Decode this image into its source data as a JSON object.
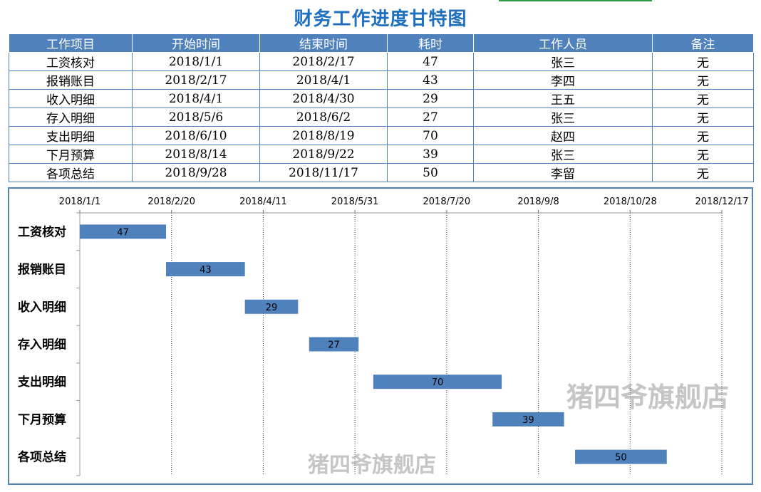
{
  "title": "财务工作进度甘特图",
  "table": {
    "headers": [
      "工作项目",
      "开始时间",
      "结束时间",
      "耗时",
      "工作人员",
      "备注"
    ],
    "rows": [
      [
        "工资核对",
        "2018/1/1",
        "2018/2/17",
        "47",
        "张三",
        "无"
      ],
      [
        "报销账目",
        "2018/2/17",
        "2018/4/1",
        "43",
        "李四",
        "无"
      ],
      [
        "收入明细",
        "2018/4/1",
        "2018/4/30",
        "29",
        "王五",
        "无"
      ],
      [
        "存入明细",
        "2018/5/6",
        "2018/6/2",
        "27",
        "张三",
        "无"
      ],
      [
        "支出明细",
        "2018/6/10",
        "2018/8/19",
        "70",
        "赵四",
        "无"
      ],
      [
        "下月预算",
        "2018/8/14",
        "2018/9/22",
        "39",
        "张三",
        "无"
      ],
      [
        "各项总结",
        "2018/9/28",
        "2018/11/17",
        "50",
        "李留",
        "无"
      ]
    ]
  },
  "chart_data": {
    "type": "bar",
    "orientation": "horizontal-gantt",
    "categories": [
      "工资核对",
      "报销账目",
      "收入明细",
      "存入明细",
      "支出明细",
      "下月预算",
      "各项总结"
    ],
    "start": [
      "2018/1/1",
      "2018/2/17",
      "2018/4/1",
      "2018/5/6",
      "2018/6/10",
      "2018/8/14",
      "2018/9/28"
    ],
    "values": [
      47,
      43,
      29,
      27,
      70,
      39,
      50
    ],
    "xticks": [
      "2018/1/1",
      "2018/2/20",
      "2018/4/11",
      "2018/5/31",
      "2018/7/20",
      "2018/9/8",
      "2018/10/28",
      "2018/12/17"
    ],
    "xlim": [
      "2018/1/1",
      "2018/12/17"
    ],
    "grid": "vertical-dotted",
    "bar_color": "#4f81bd",
    "bar_label_color": "#000000"
  },
  "watermarks": [
    "猪四爷旗舰店",
    "猪四爷旗舰店"
  ],
  "colors": {
    "header_bg": "#4f81bd",
    "title": "#1f6fbf",
    "border": "#4f81bd"
  }
}
